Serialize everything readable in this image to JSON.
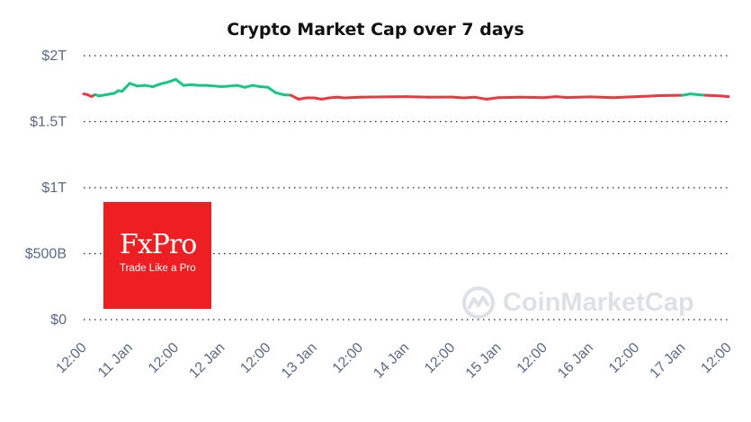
{
  "chart_data": {
    "type": "line",
    "title": "Crypto Market Cap over 7 days",
    "xlabel": "",
    "ylabel": "",
    "ylim": [
      0,
      2000
    ],
    "unit": "billion USD",
    "y_ticks": [
      "$0",
      "$500B",
      "$1T",
      "$1.5T",
      "$2T"
    ],
    "y_tick_values": [
      0,
      500,
      1000,
      1500,
      2000
    ],
    "x_ticks": [
      "12:00",
      "11 Jan",
      "12:00",
      "12 Jan",
      "12:00",
      "13 Jan",
      "12:00",
      "14 Jan",
      "12:00",
      "15 Jan",
      "12:00",
      "16 Jan",
      "12:00",
      "17 Jan",
      "12:00"
    ],
    "x_tick_hours": [
      0,
      12,
      24,
      36,
      48,
      60,
      72,
      84,
      96,
      108,
      120,
      132,
      144,
      156,
      168
    ],
    "grid": true,
    "legend": "none",
    "colors": {
      "up": "#16c784",
      "down": "#ea3943"
    },
    "x_hours": [
      0,
      1,
      2,
      3,
      4,
      6,
      8,
      9,
      10,
      12,
      14,
      16,
      18,
      20,
      22,
      24,
      26,
      28,
      30,
      32,
      34,
      36,
      38,
      40,
      42,
      44,
      46,
      48,
      50,
      52,
      54,
      56,
      58,
      60,
      62,
      64,
      66,
      68,
      72,
      78,
      84,
      90,
      96,
      99,
      102,
      105,
      108,
      114,
      120,
      123,
      126,
      132,
      138,
      144,
      147,
      150,
      156,
      158,
      162,
      166,
      168
    ],
    "values": [
      1710,
      1705,
      1690,
      1705,
      1695,
      1705,
      1715,
      1735,
      1730,
      1790,
      1770,
      1775,
      1765,
      1785,
      1800,
      1820,
      1775,
      1780,
      1775,
      1775,
      1770,
      1765,
      1770,
      1775,
      1760,
      1775,
      1765,
      1760,
      1720,
      1705,
      1700,
      1670,
      1680,
      1680,
      1670,
      1680,
      1685,
      1680,
      1685,
      1688,
      1690,
      1685,
      1686,
      1680,
      1685,
      1670,
      1682,
      1685,
      1682,
      1690,
      1683,
      1688,
      1682,
      1690,
      1693,
      1697,
      1700,
      1710,
      1700,
      1695,
      1690
    ],
    "segment_colors": [
      "down",
      "down",
      "down",
      "up",
      "up",
      "up",
      "up",
      "up",
      "up",
      "up",
      "up",
      "up",
      "up",
      "up",
      "up",
      "up",
      "up",
      "up",
      "up",
      "up",
      "up",
      "up",
      "up",
      "up",
      "up",
      "up",
      "up",
      "up",
      "up",
      "up",
      "down",
      "down",
      "down",
      "down",
      "down",
      "down",
      "down",
      "down",
      "down",
      "down",
      "down",
      "down",
      "down",
      "down",
      "down",
      "down",
      "down",
      "down",
      "down",
      "down",
      "down",
      "down",
      "down",
      "down",
      "down",
      "down",
      "up",
      "up",
      "down",
      "down"
    ]
  },
  "logo": {
    "name": "FxPro",
    "tagline": "Trade Like a Pro",
    "color": "#ee1f23"
  },
  "watermark": {
    "text": "CoinMarketCap",
    "icon": "coinmarketcap-icon",
    "color": "#dde1e6"
  }
}
